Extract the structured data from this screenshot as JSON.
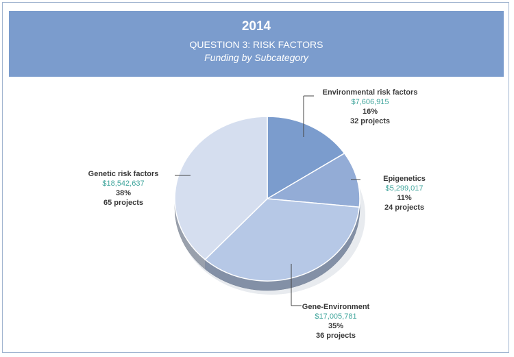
{
  "header": {
    "year": "2014",
    "subtitle": "QUESTION 3: RISK FACTORS",
    "caption": "Funding by Subcategory"
  },
  "chart_data": {
    "type": "pie",
    "title": "Funding by Subcategory",
    "slices": [
      {
        "label": "Environmental risk factors",
        "amount_text": "$7,606,915",
        "percent_text": "16%",
        "projects_text": "32 projects",
        "value": 7606915,
        "color": "#7b9ccd"
      },
      {
        "label": "Epigenetics",
        "amount_text": "$5,299,017",
        "percent_text": "11%",
        "projects_text": "24 projects",
        "value": 5299017,
        "color": "#93acd6"
      },
      {
        "label": "Gene-Environment",
        "amount_text": "$17,005,781",
        "percent_text": "35%",
        "projects_text": "36 projects",
        "value": 17005781,
        "color": "#b6c8e6"
      },
      {
        "label": "Genetic risk factors",
        "amount_text": "$18,542,637",
        "percent_text": "38%",
        "projects_text": "65 projects",
        "value": 18542637,
        "color": "#d5deef"
      }
    ]
  },
  "colors": {
    "banner": "#7b9ccd",
    "money_text": "#3fa59c"
  }
}
